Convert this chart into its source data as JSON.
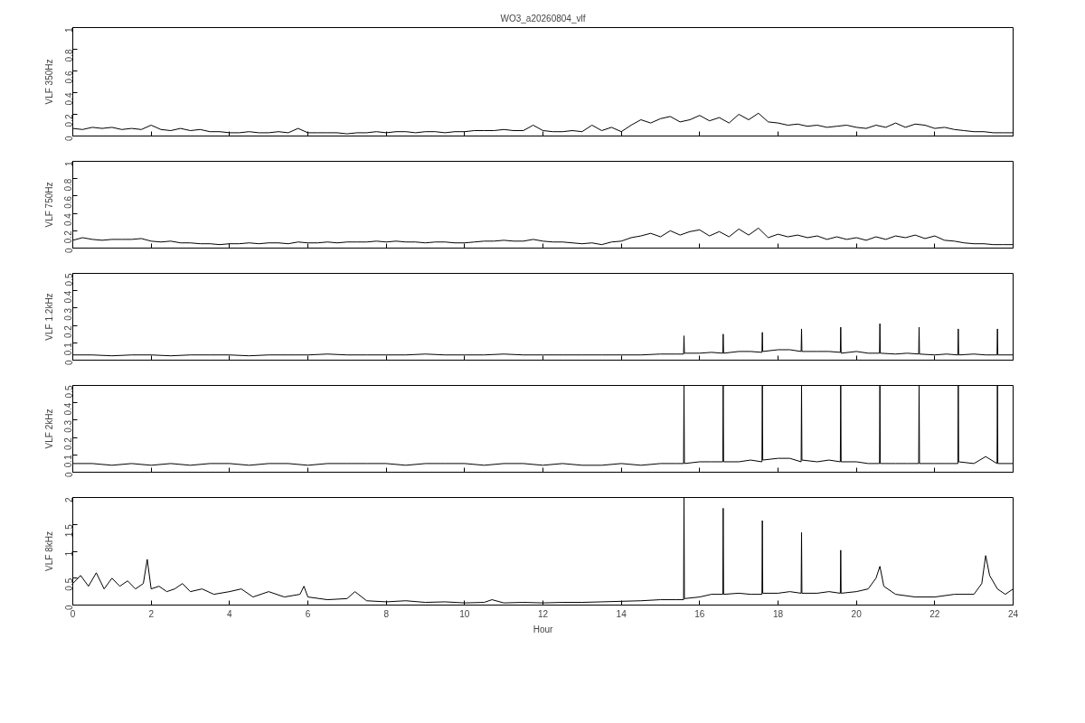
{
  "chart_data": [
    {
      "type": "line",
      "title": "WO3_a20260804_vlf",
      "ylabel": "VLF 350Hz",
      "xlim": [
        0,
        24
      ],
      "xticks": [
        0,
        2,
        4,
        6,
        8,
        10,
        12,
        14,
        16,
        18,
        20,
        22,
        24
      ],
      "ylim": [
        0,
        1
      ],
      "yticks": [
        0,
        0.2,
        0.4,
        0.6,
        0.8,
        1
      ],
      "tick_labels": "y",
      "x": [
        0,
        0.25,
        0.5,
        0.75,
        1,
        1.25,
        1.5,
        1.75,
        2,
        2.25,
        2.5,
        2.75,
        3,
        3.25,
        3.5,
        3.75,
        4,
        4.25,
        4.5,
        4.75,
        5,
        5.25,
        5.5,
        5.75,
        6,
        6.25,
        6.5,
        6.75,
        7,
        7.25,
        7.5,
        7.75,
        8,
        8.25,
        8.5,
        8.75,
        9,
        9.25,
        9.5,
        9.75,
        10,
        10.25,
        10.5,
        10.75,
        11,
        11.25,
        11.5,
        11.75,
        12,
        12.25,
        12.5,
        12.75,
        13,
        13.25,
        13.5,
        13.75,
        14,
        14.25,
        14.5,
        14.75,
        15,
        15.25,
        15.5,
        15.75,
        16,
        16.25,
        16.5,
        16.75,
        17,
        17.25,
        17.5,
        17.75,
        18,
        18.25,
        18.5,
        18.75,
        19,
        19.25,
        19.5,
        19.75,
        20,
        20.25,
        20.5,
        20.75,
        21,
        21.25,
        21.5,
        21.75,
        22,
        22.25,
        22.5,
        22.75,
        23,
        23.25,
        23.5,
        23.75,
        24
      ],
      "series": [
        {
          "color": "#000000",
          "values": [
            0.07,
            0.06,
            0.08,
            0.07,
            0.08,
            0.06,
            0.07,
            0.06,
            0.1,
            0.06,
            0.05,
            0.07,
            0.05,
            0.06,
            0.04,
            0.04,
            0.03,
            0.03,
            0.04,
            0.03,
            0.03,
            0.04,
            0.03,
            0.07,
            0.03,
            0.03,
            0.03,
            0.03,
            0.02,
            0.03,
            0.03,
            0.04,
            0.03,
            0.04,
            0.04,
            0.03,
            0.04,
            0.04,
            0.03,
            0.04,
            0.04,
            0.05,
            0.05,
            0.05,
            0.06,
            0.05,
            0.05,
            0.1,
            0.05,
            0.04,
            0.04,
            0.05,
            0.04,
            0.1,
            0.05,
            0.08,
            0.04,
            0.1,
            0.15,
            0.12,
            0.16,
            0.18,
            0.13,
            0.15,
            0.19,
            0.14,
            0.17,
            0.12,
            0.2,
            0.15,
            0.21,
            0.13,
            0.12,
            0.1,
            0.11,
            0.09,
            0.1,
            0.08,
            0.09,
            0.1,
            0.08,
            0.07,
            0.1,
            0.08,
            0.12,
            0.08,
            0.11,
            0.1,
            0.07,
            0.08,
            0.06,
            0.05,
            0.04,
            0.04,
            0.03,
            0.03,
            0.03
          ]
        }
      ]
    },
    {
      "type": "line",
      "ylabel": "VLF 750Hz",
      "xlim": [
        0,
        24
      ],
      "xticks": [
        0,
        2,
        4,
        6,
        8,
        10,
        12,
        14,
        16,
        18,
        20,
        22,
        24
      ],
      "ylim": [
        0,
        1
      ],
      "yticks": [
        0,
        0.2,
        0.4,
        0.6,
        0.8,
        1
      ],
      "tick_labels": "y",
      "x": [
        0,
        0.25,
        0.5,
        0.75,
        1,
        1.25,
        1.5,
        1.75,
        2,
        2.25,
        2.5,
        2.75,
        3,
        3.25,
        3.5,
        3.75,
        4,
        4.25,
        4.5,
        4.75,
        5,
        5.25,
        5.5,
        5.75,
        6,
        6.25,
        6.5,
        6.75,
        7,
        7.25,
        7.5,
        7.75,
        8,
        8.25,
        8.5,
        8.75,
        9,
        9.25,
        9.5,
        9.75,
        10,
        10.25,
        10.5,
        10.75,
        11,
        11.25,
        11.5,
        11.75,
        12,
        12.25,
        12.5,
        12.75,
        13,
        13.25,
        13.5,
        13.75,
        14,
        14.25,
        14.5,
        14.75,
        15,
        15.25,
        15.5,
        15.75,
        16,
        16.25,
        16.5,
        16.75,
        17,
        17.25,
        17.5,
        17.75,
        18,
        18.25,
        18.5,
        18.75,
        19,
        19.25,
        19.5,
        19.75,
        20,
        20.25,
        20.5,
        20.75,
        21,
        21.25,
        21.5,
        21.75,
        22,
        22.25,
        22.5,
        22.75,
        23,
        23.25,
        23.5,
        23.75,
        24
      ],
      "series": [
        {
          "color": "#000000",
          "values": [
            0.09,
            0.12,
            0.1,
            0.09,
            0.1,
            0.1,
            0.1,
            0.11,
            0.08,
            0.07,
            0.08,
            0.06,
            0.06,
            0.05,
            0.05,
            0.04,
            0.05,
            0.05,
            0.06,
            0.05,
            0.06,
            0.06,
            0.05,
            0.07,
            0.06,
            0.06,
            0.07,
            0.06,
            0.07,
            0.07,
            0.07,
            0.08,
            0.07,
            0.08,
            0.07,
            0.07,
            0.06,
            0.07,
            0.07,
            0.06,
            0.06,
            0.07,
            0.08,
            0.08,
            0.09,
            0.08,
            0.08,
            0.1,
            0.08,
            0.07,
            0.07,
            0.06,
            0.05,
            0.06,
            0.04,
            0.07,
            0.08,
            0.12,
            0.14,
            0.17,
            0.13,
            0.2,
            0.15,
            0.19,
            0.21,
            0.14,
            0.19,
            0.13,
            0.22,
            0.15,
            0.23,
            0.12,
            0.16,
            0.13,
            0.15,
            0.12,
            0.14,
            0.1,
            0.13,
            0.1,
            0.12,
            0.09,
            0.13,
            0.1,
            0.14,
            0.12,
            0.15,
            0.11,
            0.14,
            0.09,
            0.08,
            0.06,
            0.05,
            0.05,
            0.04,
            0.04,
            0.04
          ]
        }
      ]
    },
    {
      "type": "line",
      "ylabel": "VLF 1.2kHz",
      "xlim": [
        0,
        24
      ],
      "xticks": [
        0,
        2,
        4,
        6,
        8,
        10,
        12,
        14,
        16,
        18,
        20,
        22,
        24
      ],
      "ylim": [
        0,
        0.5
      ],
      "yticks": [
        0,
        0.1,
        0.2,
        0.3,
        0.4,
        0.5
      ],
      "tick_labels": "y",
      "x": [
        0,
        0.5,
        1,
        1.5,
        2,
        2.5,
        3,
        3.5,
        4,
        4.5,
        5,
        5.5,
        6,
        6.5,
        7,
        7.5,
        8,
        8.5,
        9,
        9.5,
        10,
        10.5,
        11,
        11.5,
        12,
        12.5,
        13,
        13.5,
        14,
        14.5,
        15,
        15.4,
        15.59,
        15.6,
        15.61,
        16,
        16.3,
        16.59,
        16.6,
        16.61,
        17,
        17.3,
        17.59,
        17.6,
        17.61,
        18,
        18.3,
        18.59,
        18.6,
        18.61,
        19,
        19.3,
        19.59,
        19.6,
        19.61,
        20,
        20.3,
        20.59,
        20.6,
        20.61,
        21,
        21.3,
        21.59,
        21.6,
        21.61,
        22,
        22.3,
        22.59,
        22.6,
        22.61,
        23,
        23.3,
        23.59,
        23.6,
        23.61,
        24
      ],
      "series": [
        {
          "color": "#000000",
          "values": [
            0.03,
            0.03,
            0.025,
            0.03,
            0.03,
            0.025,
            0.03,
            0.03,
            0.03,
            0.025,
            0.03,
            0.03,
            0.03,
            0.035,
            0.03,
            0.03,
            0.03,
            0.03,
            0.035,
            0.03,
            0.03,
            0.03,
            0.035,
            0.03,
            0.03,
            0.03,
            0.03,
            0.03,
            0.03,
            0.03,
            0.035,
            0.035,
            0.035,
            0.14,
            0.04,
            0.04,
            0.045,
            0.04,
            0.15,
            0.04,
            0.05,
            0.05,
            0.045,
            0.16,
            0.05,
            0.06,
            0.06,
            0.05,
            0.18,
            0.05,
            0.05,
            0.05,
            0.045,
            0.19,
            0.04,
            0.05,
            0.04,
            0.04,
            0.21,
            0.04,
            0.035,
            0.04,
            0.035,
            0.19,
            0.035,
            0.03,
            0.035,
            0.03,
            0.18,
            0.03,
            0.035,
            0.03,
            0.03,
            0.18,
            0.03,
            0.03
          ]
        }
      ]
    },
    {
      "type": "line",
      "ylabel": "VLF 2kHz",
      "xlim": [
        0,
        24
      ],
      "xticks": [
        0,
        2,
        4,
        6,
        8,
        10,
        12,
        14,
        16,
        18,
        20,
        22,
        24
      ],
      "ylim": [
        0,
        0.5
      ],
      "yticks": [
        0,
        0.1,
        0.2,
        0.3,
        0.4,
        0.5
      ],
      "tick_labels": "y",
      "x": [
        0,
        0.5,
        1,
        1.5,
        2,
        2.5,
        3,
        3.5,
        4,
        4.5,
        5,
        5.5,
        6,
        6.5,
        7,
        7.5,
        8,
        8.5,
        9,
        9.5,
        10,
        10.5,
        11,
        11.5,
        12,
        12.5,
        13,
        13.5,
        14,
        14.5,
        15,
        15.4,
        15.59,
        15.6,
        15.61,
        16,
        16.3,
        16.59,
        16.6,
        16.61,
        17,
        17.3,
        17.59,
        17.6,
        17.61,
        18,
        18.3,
        18.59,
        18.6,
        18.61,
        19,
        19.3,
        19.59,
        19.6,
        19.61,
        20,
        20.3,
        20.59,
        20.6,
        20.61,
        21,
        21.3,
        21.59,
        21.6,
        21.61,
        22,
        22.3,
        22.59,
        22.6,
        22.61,
        23,
        23.3,
        23.59,
        23.6,
        23.61,
        24
      ],
      "series": [
        {
          "color": "#000000",
          "values": [
            0.05,
            0.05,
            0.04,
            0.05,
            0.04,
            0.05,
            0.04,
            0.05,
            0.05,
            0.04,
            0.05,
            0.05,
            0.04,
            0.05,
            0.05,
            0.05,
            0.05,
            0.04,
            0.05,
            0.05,
            0.05,
            0.04,
            0.05,
            0.05,
            0.04,
            0.05,
            0.04,
            0.04,
            0.05,
            0.04,
            0.05,
            0.05,
            0.05,
            0.5,
            0.05,
            0.06,
            0.06,
            0.06,
            0.5,
            0.06,
            0.06,
            0.07,
            0.06,
            0.5,
            0.07,
            0.08,
            0.08,
            0.06,
            0.5,
            0.07,
            0.06,
            0.07,
            0.06,
            0.5,
            0.06,
            0.06,
            0.05,
            0.05,
            0.5,
            0.05,
            0.05,
            0.05,
            0.05,
            0.5,
            0.05,
            0.05,
            0.05,
            0.05,
            0.5,
            0.06,
            0.05,
            0.09,
            0.05,
            0.5,
            0.05,
            0.05
          ]
        }
      ]
    },
    {
      "type": "line",
      "ylabel": "VLF 8kHz",
      "xlabel": "Hour",
      "xlim": [
        0,
        24
      ],
      "xticks": [
        0,
        2,
        4,
        6,
        8,
        10,
        12,
        14,
        16,
        18,
        20,
        22,
        24
      ],
      "ylim": [
        0,
        2
      ],
      "yticks": [
        0,
        0.5,
        1,
        1.5,
        2
      ],
      "x": [
        0,
        0.2,
        0.4,
        0.6,
        0.8,
        1,
        1.2,
        1.4,
        1.6,
        1.8,
        1.9,
        2,
        2.2,
        2.4,
        2.6,
        2.8,
        3,
        3.3,
        3.6,
        4,
        4.3,
        4.6,
        5,
        5.4,
        5.8,
        5.9,
        6,
        6.5,
        7,
        7.2,
        7.5,
        8,
        8.5,
        9,
        9.5,
        10,
        10.5,
        10.7,
        11,
        11.5,
        12,
        12.5,
        13,
        13.5,
        14,
        14.5,
        15,
        15.4,
        15.59,
        15.6,
        15.61,
        16,
        16.3,
        16.59,
        16.6,
        16.61,
        17,
        17.3,
        17.59,
        17.6,
        17.61,
        18,
        18.3,
        18.59,
        18.6,
        18.61,
        19,
        19.3,
        19.59,
        19.6,
        19.61,
        20,
        20.3,
        20.5,
        20.6,
        20.7,
        21,
        21.5,
        22,
        22.5,
        23,
        23.2,
        23.3,
        23.4,
        23.6,
        23.8,
        24
      ],
      "series": [
        {
          "color": "#000000",
          "values": [
            0.4,
            0.55,
            0.35,
            0.6,
            0.3,
            0.5,
            0.35,
            0.45,
            0.3,
            0.4,
            0.85,
            0.3,
            0.35,
            0.25,
            0.3,
            0.4,
            0.25,
            0.3,
            0.2,
            0.25,
            0.3,
            0.15,
            0.25,
            0.15,
            0.2,
            0.35,
            0.15,
            0.1,
            0.12,
            0.25,
            0.08,
            0.06,
            0.08,
            0.05,
            0.06,
            0.04,
            0.05,
            0.1,
            0.04,
            0.05,
            0.04,
            0.05,
            0.05,
            0.06,
            0.07,
            0.08,
            0.1,
            0.1,
            0.1,
            2,
            0.12,
            0.15,
            0.2,
            0.2,
            1.8,
            0.2,
            0.22,
            0.2,
            0.2,
            1.57,
            0.22,
            0.22,
            0.25,
            0.22,
            1.35,
            0.22,
            0.22,
            0.25,
            0.22,
            1.02,
            0.22,
            0.25,
            0.3,
            0.5,
            0.72,
            0.35,
            0.2,
            0.15,
            0.15,
            0.2,
            0.2,
            0.4,
            0.92,
            0.55,
            0.3,
            0.2,
            0.3
          ]
        }
      ]
    }
  ]
}
